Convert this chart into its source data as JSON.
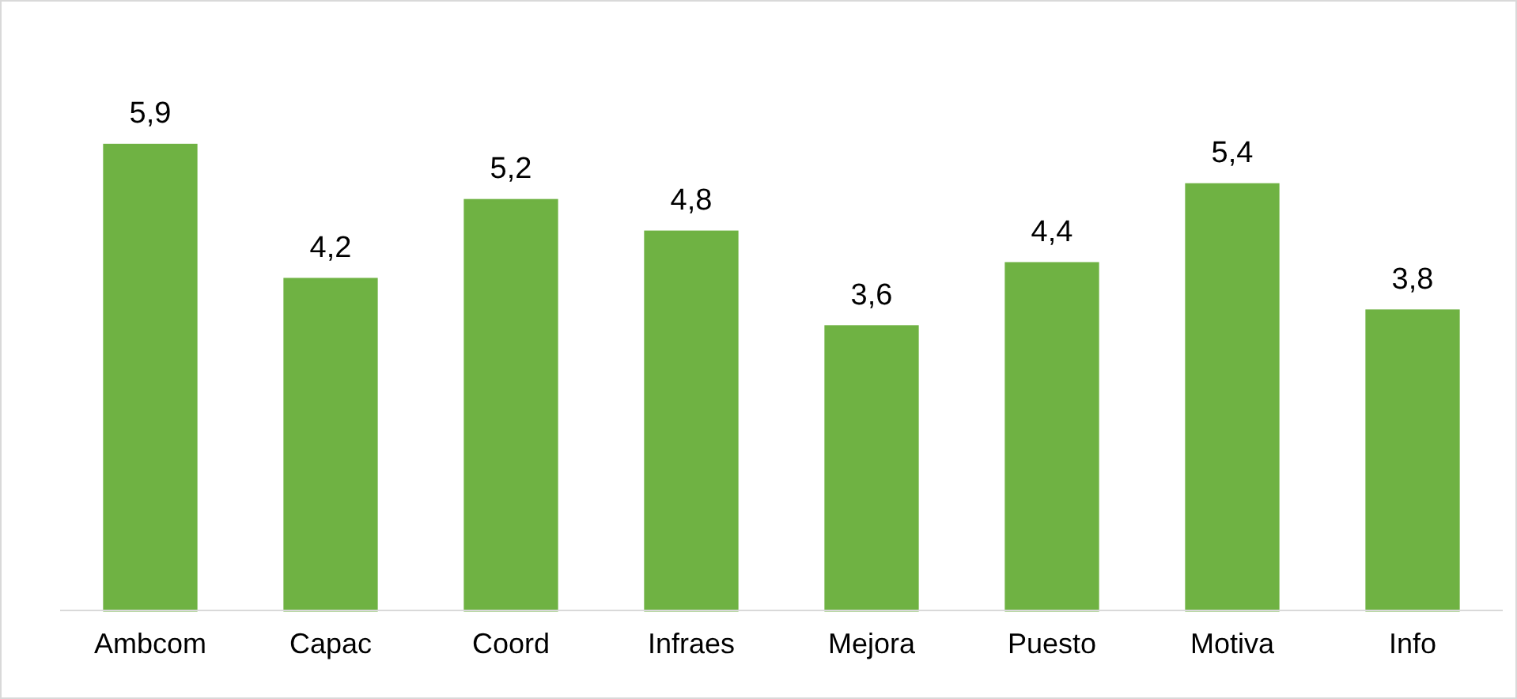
{
  "chart_data": {
    "type": "bar",
    "categories": [
      "Ambcom",
      "Capac",
      "Coord",
      "Infraes",
      "Mejora",
      "Puesto",
      "Motiva",
      "Info"
    ],
    "values": [
      5.9,
      4.2,
      5.2,
      4.8,
      3.6,
      4.4,
      5.4,
      3.8
    ],
    "value_labels": [
      "5,9",
      "4,2",
      "5,2",
      "4,8",
      "3,6",
      "4,4",
      "5,4",
      "3,8"
    ],
    "color": "#6fb243",
    "tick_labels": "x"
  }
}
